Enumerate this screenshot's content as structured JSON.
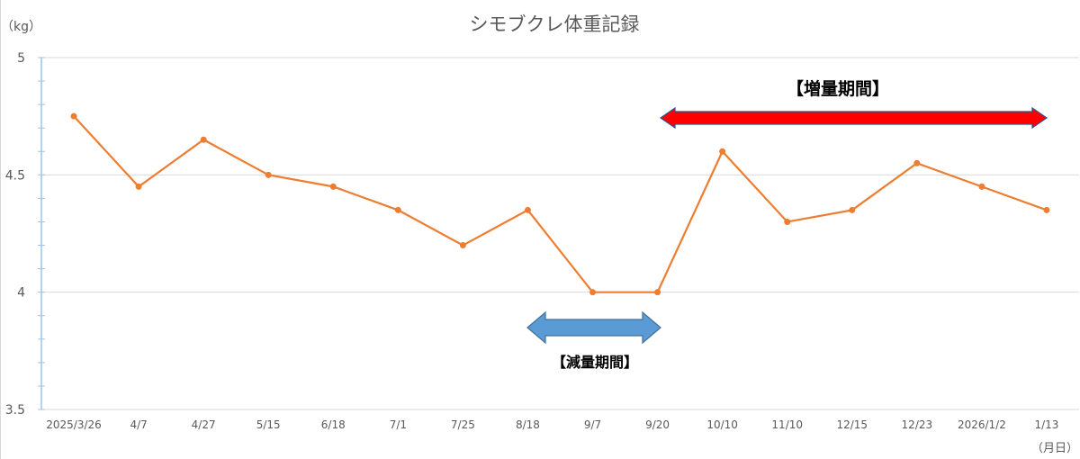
{
  "chart_data": {
    "type": "line",
    "title": "シモブクレ体重記録",
    "ylabel": "（kg）",
    "xlabel": "（月日）",
    "ylim": [
      3.5,
      5
    ],
    "yticks": [
      "3.5",
      "4",
      "4.5",
      "5"
    ],
    "grid": true,
    "categories": [
      "2025/3/26",
      "4/7",
      "4/27",
      "5/15",
      "6/18",
      "7/1",
      "7/25",
      "8/18",
      "9/7",
      "9/20",
      "10/10",
      "11/10",
      "12/15",
      "12/23",
      "2026/1/2",
      "1/13"
    ],
    "series": [
      {
        "values": [
          4.75,
          4.45,
          4.65,
          4.5,
          4.45,
          4.35,
          4.2,
          4.35,
          4.0,
          4.0,
          4.6,
          4.3,
          4.35,
          4.55,
          4.45,
          4.35
        ],
        "color": "#ed7d31"
      }
    ],
    "annotations": [
      {
        "text": "【増量期間】",
        "from": "9/20",
        "to": "1/13",
        "color": "#ff0000"
      },
      {
        "text": "【減量期間】",
        "from": "8/18",
        "to": "9/20",
        "color": "#5b9bd5"
      }
    ]
  }
}
